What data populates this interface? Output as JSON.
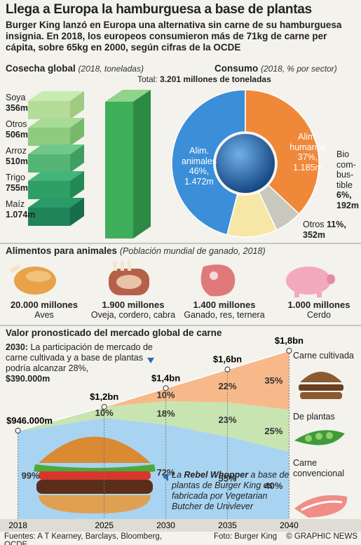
{
  "header": {
    "title": "Llega a Europa la hamburguesa a base de plantas",
    "subtitle": "Burger King lanzó en Europa una alternativa sin carne de su hamburguesa insignia. En 2018, los europeos consumieron más de 71kg de carne per cápita, sobre 65kg en 2000, según cifras de la OCDE"
  },
  "harvest": {
    "title": "Cosecha global",
    "note": "(2018, toneladas)",
    "total_label": "Total:",
    "total": "3.201 millones de toneladas",
    "crops": [
      {
        "name": "Soya",
        "amount": "356m"
      },
      {
        "name": "Otros",
        "amount": "506m"
      },
      {
        "name": "Arroz",
        "amount": "510m"
      },
      {
        "name": "Trigo",
        "amount": "755m"
      },
      {
        "name": "Maíz",
        "amount": "1.074m"
      }
    ]
  },
  "chart_data": [
    {
      "type": "pie",
      "title": "Consumo",
      "subtitle": "(2018, % por sector)",
      "categories": [
        "Alim. animales",
        "Alim. humanos",
        "Bio com- bus- tible",
        "Otros"
      ],
      "values": [
        46,
        37,
        6,
        11
      ],
      "value_labels": [
        "46%,",
        "37%,",
        "6%,",
        "11%,"
      ],
      "amounts": [
        "1.472m",
        "1.185m",
        "192m",
        "352m"
      ],
      "colors": [
        "#3b8fd8",
        "#f0883a",
        "#c8c8bc",
        "#f6e7a6"
      ]
    },
    {
      "type": "area",
      "title": "Valor pronosticado del mercado global de carne",
      "x": [
        2018,
        2025,
        2030,
        2035,
        2040
      ],
      "xlim": [
        2017,
        2041
      ],
      "xticks": [
        2018,
        2025,
        2030,
        2035,
        2040
      ],
      "ylim": [
        0,
        1800
      ],
      "totals": [
        946,
        1200,
        1400,
        1600,
        1800
      ],
      "total_labels": [
        "$946.000m",
        "$1,2bn",
        "$1,4bn",
        "$1,6bn",
        "$1,8bn"
      ],
      "series": [
        {
          "name": "Carne convencional",
          "color": "#a8d4f2",
          "values": [
            99,
            90,
            72,
            55,
            40
          ],
          "value_labels": [
            "99%",
            null,
            "72%",
            "55%",
            "40%"
          ]
        },
        {
          "name": "De plantas",
          "color": "#c8e4b0",
          "values": [
            1,
            10,
            18,
            23,
            25
          ],
          "value_labels": [
            null,
            "10%",
            "18%",
            "23%",
            "25%"
          ]
        },
        {
          "name": "Carne cultivada",
          "color": "#f8b98a",
          "values": [
            0,
            0,
            10,
            22,
            35
          ],
          "value_labels": [
            null,
            null,
            "10%",
            "22%",
            "35%"
          ]
        }
      ]
    }
  ],
  "animals": {
    "title": "Alimentos para animales",
    "note": "(Población mundial de ganado, 2018)",
    "items": [
      {
        "count": "20.000 millones",
        "name": "Aves"
      },
      {
        "count": "1.900 millones",
        "name": "Oveja, cordero, cabra"
      },
      {
        "count": "1.400 millones",
        "name": "Ganado, res, ternera"
      },
      {
        "count": "1.000 millones",
        "name": "Cerdo"
      }
    ]
  },
  "market": {
    "annotation": {
      "year": "2030:",
      "text": "La participación de mercado de carne cultivada y a base de plantas podría alcanzar 28%,",
      "value": "$390.000m"
    },
    "caption": {
      "pre": "La",
      "name": "Rebel Whopper",
      "text": "a base de plantas de Burger King es fabricada por Vegetarian Butcher de Univlever"
    }
  },
  "footer": {
    "sources": "Fuentes: A T Kearney, Barclays, Bloomberg, OCDE",
    "photo": "Foto: Burger King",
    "credit": "© GRAPHIC NEWS"
  }
}
